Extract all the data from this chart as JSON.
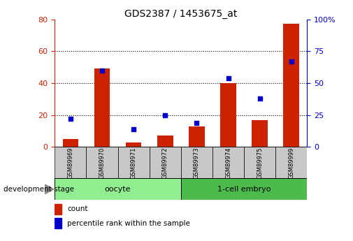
{
  "title": "GDS2387 / 1453675_at",
  "samples": [
    "GSM89969",
    "GSM89970",
    "GSM89971",
    "GSM89972",
    "GSM89973",
    "GSM89974",
    "GSM89975",
    "GSM89999"
  ],
  "count": [
    5,
    49,
    3,
    7,
    13,
    40,
    17,
    77
  ],
  "percentile": [
    22,
    60,
    14,
    25,
    19,
    54,
    38,
    67
  ],
  "group_labels": [
    "oocyte",
    "1-cell embryo"
  ],
  "group_colors": [
    "#90EE90",
    "#4CBB4C"
  ],
  "left_ylim": [
    0,
    80
  ],
  "right_ylim": [
    0,
    100
  ],
  "left_yticks": [
    0,
    20,
    40,
    60,
    80
  ],
  "right_yticks": [
    0,
    25,
    50,
    75,
    100
  ],
  "right_yticklabels": [
    "0",
    "25",
    "50",
    "75",
    "100%"
  ],
  "bar_color": "#CC2200",
  "square_color": "#0000CC",
  "bar_width": 0.5,
  "left_axis_color": "#CC2200",
  "right_axis_color": "#0000CC",
  "sample_box_color": "#C8C8C8",
  "stage_label": "development stage",
  "legend_count": "count",
  "legend_pct": "percentile rank within the sample"
}
